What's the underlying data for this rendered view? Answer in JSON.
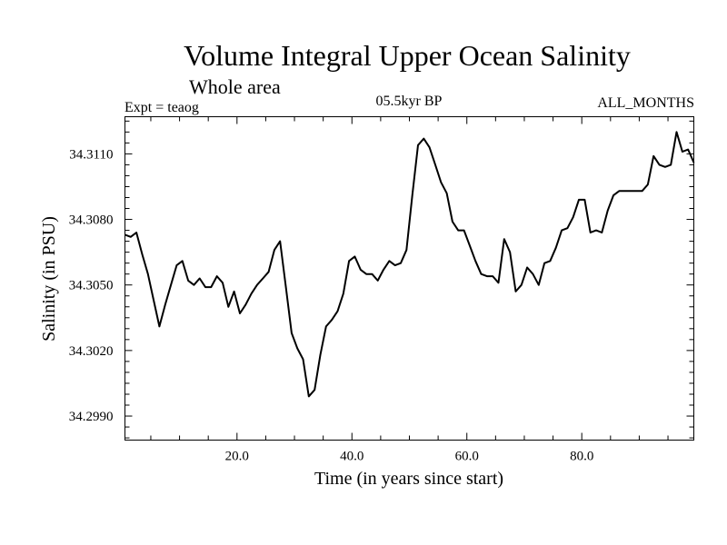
{
  "chart_data": {
    "type": "line",
    "title": "Volume Integral Upper Ocean Salinity",
    "subtitle": "Whole area",
    "annotations": {
      "left": "Expt = teaog",
      "center": "05.5kyr BP",
      "right": "ALL_MONTHS"
    },
    "xlabel": "Time (in years since start)",
    "ylabel": "Salinity (in PSU)",
    "xlim": [
      0.5,
      99.5
    ],
    "ylim": [
      34.2979,
      34.3127
    ],
    "xticks": [
      20,
      40,
      60,
      80
    ],
    "xtick_labels": [
      "20.0",
      "40.0",
      "60.0",
      "80.0"
    ],
    "yticks": [
      34.299,
      34.302,
      34.305,
      34.308,
      34.311
    ],
    "ytick_labels": [
      "34.2990",
      "34.3020",
      "34.3050",
      "34.3080",
      "34.3110"
    ],
    "grid": false,
    "series": [
      {
        "name": "salinity",
        "x": [
          0.5,
          1.5,
          2.5,
          3.5,
          4.5,
          5.5,
          6.5,
          7.5,
          8.5,
          9.5,
          10.5,
          11.5,
          12.5,
          13.5,
          14.5,
          15.5,
          16.5,
          17.5,
          18.5,
          19.5,
          20.5,
          21.5,
          22.5,
          23.5,
          24.5,
          25.5,
          26.5,
          27.5,
          28.5,
          29.5,
          30.5,
          31.5,
          32.5,
          33.5,
          34.5,
          35.5,
          36.5,
          37.5,
          38.5,
          39.5,
          40.5,
          41.5,
          42.5,
          43.5,
          44.5,
          45.5,
          46.5,
          47.5,
          48.5,
          49.5,
          50.5,
          51.5,
          52.5,
          53.5,
          54.5,
          55.5,
          56.5,
          57.5,
          58.5,
          59.5,
          60.5,
          61.5,
          62.5,
          63.5,
          64.5,
          65.5,
          66.5,
          67.5,
          68.5,
          69.5,
          70.5,
          71.5,
          72.5,
          73.5,
          74.5,
          75.5,
          76.5,
          77.5,
          78.5,
          79.5,
          80.5,
          81.5,
          82.5,
          83.5,
          84.5,
          85.5,
          86.5,
          87.5,
          88.5,
          89.5,
          90.5,
          91.5,
          92.5,
          93.5,
          94.5,
          95.5,
          96.5,
          97.5,
          98.5,
          99.5
        ],
        "values": [
          34.3073,
          34.3072,
          34.3074,
          34.3064,
          34.3055,
          34.3043,
          34.3031,
          34.3041,
          34.305,
          34.3059,
          34.3061,
          34.3052,
          34.305,
          34.3053,
          34.3049,
          34.3049,
          34.3054,
          34.3051,
          34.304,
          34.3047,
          34.3037,
          34.3041,
          34.3046,
          34.305,
          34.3053,
          34.3056,
          34.3066,
          34.307,
          34.3049,
          34.3028,
          34.3021,
          34.3016,
          34.2999,
          34.3002,
          34.3018,
          34.3031,
          34.3034,
          34.3038,
          34.3046,
          34.3061,
          34.3063,
          34.3057,
          34.3055,
          34.3055,
          34.3052,
          34.3057,
          34.3061,
          34.3059,
          34.306,
          34.3066,
          34.3091,
          34.3114,
          34.3117,
          34.3113,
          34.3105,
          34.3097,
          34.3092,
          34.3079,
          34.3075,
          34.3075,
          34.3068,
          34.3061,
          34.3055,
          34.3054,
          34.3054,
          34.3051,
          34.3071,
          34.3065,
          34.3047,
          34.305,
          34.3058,
          34.3055,
          34.305,
          34.306,
          34.3061,
          34.3067,
          34.3075,
          34.3076,
          34.3081,
          34.3089,
          34.3089,
          34.3074,
          34.3075,
          34.3074,
          34.3084,
          34.3091,
          34.3093,
          34.3093,
          34.3093,
          34.3093,
          34.3093,
          34.3096,
          34.3109,
          34.3105,
          34.3104,
          34.3105,
          34.312,
          34.3111,
          34.3112,
          34.3106
        ]
      }
    ]
  }
}
